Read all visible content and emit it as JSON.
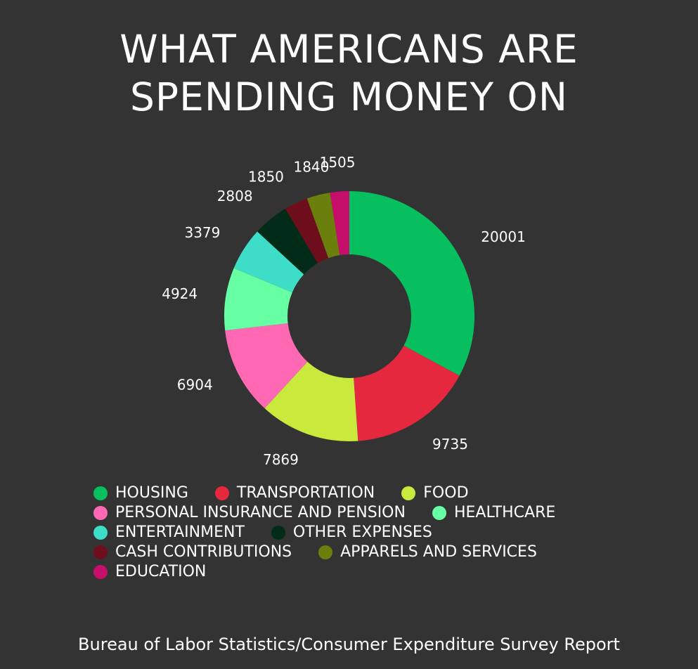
{
  "chart_data": {
    "type": "pie",
    "style": "donut",
    "title_lines": [
      "WHAT AMERICANS ARE",
      "SPENDING MONEY ON"
    ],
    "source": "Bureau of Labor Statistics/Consumer Expenditure Survey Report",
    "legend_position": "bottom",
    "slices": [
      {
        "label": "HOUSING",
        "value": 20001,
        "color": "#08BF5F"
      },
      {
        "label": "TRANSPORTATION",
        "value": 9735,
        "color": "#E5283E"
      },
      {
        "label": "FOOD",
        "value": 7869,
        "color": "#C9EA3C"
      },
      {
        "label": "PERSONAL INSURANCE AND PENSION",
        "value": 6904,
        "color": "#FF69B4"
      },
      {
        "label": "HEALTHCARE",
        "value": 4924,
        "color": "#66FFA3"
      },
      {
        "label": "ENTERTAINMENT",
        "value": 3379,
        "color": "#3DDDC8"
      },
      {
        "label": "OTHER EXPENSES",
        "value": 2808,
        "color": "#022C17"
      },
      {
        "label": "CASH CONTRIBUTIONS",
        "value": 1850,
        "color": "#6E0E1C"
      },
      {
        "label": "APPARELS AND SERVICES",
        "value": 1840,
        "color": "#6B7F0C"
      },
      {
        "label": "EDUCATION",
        "value": 1505,
        "color": "#C60F6B"
      }
    ]
  }
}
